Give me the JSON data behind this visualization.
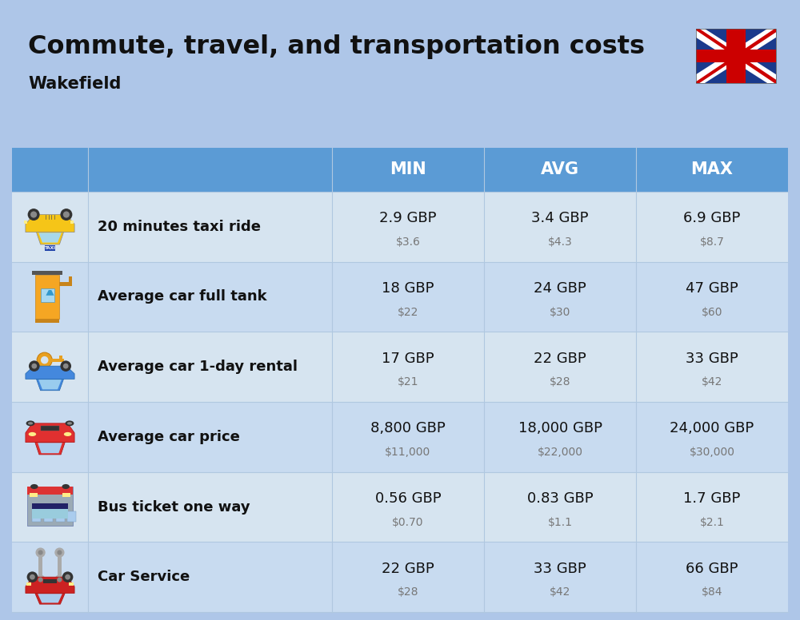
{
  "title": "Commute, travel, and transportation costs",
  "subtitle": "Wakefield",
  "background_color": "#AEC6E8",
  "header_bg_color": "#5B9BD5",
  "header_text_color": "#FFFFFF",
  "row_bg_colors": [
    "#D6E4F0",
    "#C8DBF0",
    "#D6E4F0",
    "#C8DBF0",
    "#D6E4F0",
    "#C8DBF0"
  ],
  "col_headers": [
    "MIN",
    "AVG",
    "MAX"
  ],
  "rows": [
    {
      "label": "20 minutes taxi ride",
      "min_gbp": "2.9 GBP",
      "min_usd": "$3.6",
      "avg_gbp": "3.4 GBP",
      "avg_usd": "$4.3",
      "max_gbp": "6.9 GBP",
      "max_usd": "$8.7"
    },
    {
      "label": "Average car full tank",
      "min_gbp": "18 GBP",
      "min_usd": "$22",
      "avg_gbp": "24 GBP",
      "avg_usd": "$30",
      "max_gbp": "47 GBP",
      "max_usd": "$60"
    },
    {
      "label": "Average car 1-day rental",
      "min_gbp": "17 GBP",
      "min_usd": "$21",
      "avg_gbp": "22 GBP",
      "avg_usd": "$28",
      "max_gbp": "33 GBP",
      "max_usd": "$42"
    },
    {
      "label": "Average car price",
      "min_gbp": "8,800 GBP",
      "min_usd": "$11,000",
      "avg_gbp": "18,000 GBP",
      "avg_usd": "$22,000",
      "max_gbp": "24,000 GBP",
      "max_usd": "$30,000"
    },
    {
      "label": "Bus ticket one way",
      "min_gbp": "0.56 GBP",
      "min_usd": "$0.70",
      "avg_gbp": "0.83 GBP",
      "avg_usd": "$1.1",
      "max_gbp": "1.7 GBP",
      "max_usd": "$2.1"
    },
    {
      "label": "Car Service",
      "min_gbp": "22 GBP",
      "min_usd": "$28",
      "avg_gbp": "33 GBP",
      "avg_usd": "$42",
      "max_gbp": "66 GBP",
      "max_usd": "$84"
    }
  ]
}
